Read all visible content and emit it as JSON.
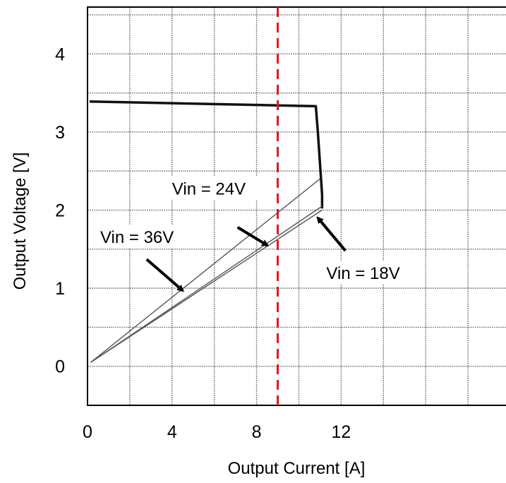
{
  "chart_data": {
    "type": "line",
    "xlabel": "Output Current [A]",
    "ylabel": "Output Voltage [V]",
    "xlim": [
      0,
      19.8
    ],
    "ylim": [
      -0.5,
      4.6
    ],
    "x_grid_step": 2,
    "y_grid_step": 0.5,
    "grid": true,
    "x_ticks": [
      {
        "value": 0,
        "label": "0"
      },
      {
        "value": 4,
        "label": "4"
      },
      {
        "value": 8,
        "label": "8"
      },
      {
        "value": 12,
        "label": "12"
      }
    ],
    "y_ticks": [
      {
        "value": 0,
        "label": "0"
      },
      {
        "value": 1,
        "label": "1"
      },
      {
        "value": 2,
        "label": "2"
      },
      {
        "value": 3,
        "label": "3"
      },
      {
        "value": 4,
        "label": "4"
      }
    ],
    "series": [
      {
        "line": "thick",
        "points": [
          [
            0.1,
            3.39
          ],
          [
            10.8,
            3.33
          ],
          [
            10.9,
            3.0
          ],
          [
            11.0,
            2.6
          ],
          [
            11.1,
            2.2
          ],
          [
            11.1,
            2.02
          ]
        ]
      },
      {
        "line": "thin",
        "points": [
          [
            0.15,
            0.05
          ],
          [
            11.0,
            2.4
          ]
        ]
      },
      {
        "line": "thin",
        "points": [
          [
            0.15,
            0.05
          ],
          [
            11.1,
            2.05
          ]
        ]
      },
      {
        "line": "thin",
        "points": [
          [
            0.15,
            0.05
          ],
          [
            11.1,
            2.0
          ]
        ]
      }
    ],
    "reference_line": {
      "x": 9,
      "color": "#e8141b",
      "style": "dashed"
    },
    "annotations": [
      {
        "text": "Vin = 24V",
        "label_at": [
          4.0,
          2.2
        ],
        "arrow_from": [
          7.1,
          1.78
        ],
        "arrow_to": [
          8.5,
          1.55
        ]
      },
      {
        "text": "Vin = 36V",
        "label_at": [
          0.6,
          1.58
        ],
        "arrow_from": [
          2.8,
          1.37
        ],
        "arrow_to": [
          4.5,
          0.97
        ]
      },
      {
        "text": "Vin = 18V",
        "label_at": [
          11.3,
          1.12
        ],
        "arrow_from": [
          12.2,
          1.48
        ],
        "arrow_to": [
          10.9,
          1.9
        ]
      }
    ]
  }
}
